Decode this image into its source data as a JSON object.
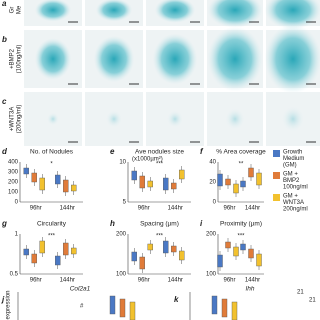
{
  "image_rows": [
    {
      "letter": "a",
      "label": [
        "Gr",
        "Me"
      ]
    },
    {
      "letter": "b",
      "label": [
        "+BMP2",
        "(100ng/ml)"
      ]
    },
    {
      "letter": "c",
      "label": [
        "+WNT3A",
        "(200ng/ml)"
      ]
    }
  ],
  "panels": [
    {
      "letter": "d",
      "title": "No. of Nodules",
      "yticks": [
        "400",
        "300",
        "200",
        "100",
        "0"
      ],
      "xlabels": [
        "96hr",
        "144hr"
      ],
      "marks": [
        "*"
      ]
    },
    {
      "letter": "e",
      "title": "Ave nodules size",
      "subtitle": "(x1000µm²)",
      "yticks": [
        "10",
        "5"
      ],
      "xlabels": [
        "96hr",
        "144hr"
      ],
      "marks": [
        "***"
      ]
    },
    {
      "letter": "f",
      "title": "% Area coverage",
      "yticks": [
        "40",
        "20",
        "0"
      ],
      "xlabels": [
        "96hr",
        "144hr"
      ],
      "marks": [
        "**"
      ]
    },
    {
      "letter": "g",
      "title": "Circularity",
      "yticks": [
        "1",
        "0.5"
      ],
      "xlabels": [
        "96hr",
        "144hr"
      ],
      "marks": [
        "***"
      ]
    },
    {
      "letter": "h",
      "title": "Spacing (µm)",
      "yticks": [
        "200",
        "100"
      ],
      "xlabels": [
        "96hr",
        "144hr"
      ],
      "marks": [
        "***"
      ]
    },
    {
      "letter": "i",
      "title": "Proximity (µm)",
      "yticks": [
        "200",
        "100"
      ],
      "xlabels": [
        "96hr",
        "144hr"
      ],
      "marks": [
        "***"
      ]
    }
  ],
  "legend": [
    {
      "label": [
        "Growth",
        "Medium",
        "(GM)"
      ],
      "color": "#4a78c4"
    },
    {
      "label": [
        "GM +",
        "BMP2",
        "100ng/ml"
      ],
      "color": "#e07b39"
    },
    {
      "label": [
        "GM +",
        "WNT3A",
        "200ng/ml"
      ],
      "color": "#f2c12e"
    }
  ],
  "bottom": [
    {
      "letter": "j",
      "title": "Col2a1",
      "ylabel": "expression",
      "notes": [
        "#"
      ]
    },
    {
      "letter": "k",
      "title": "Ihh",
      "notes": [
        "21",
        "21",
        "11"
      ]
    }
  ]
}
